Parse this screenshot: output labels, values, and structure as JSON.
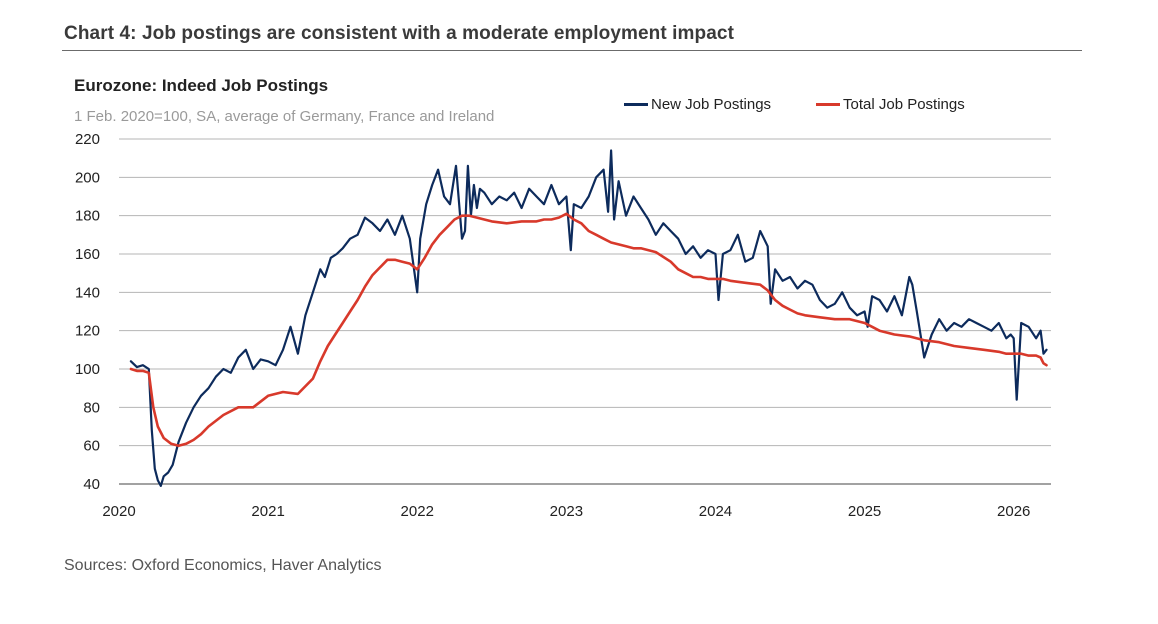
{
  "page": {
    "title": "Chart 4: Job postings are consistent with a moderate employment impact",
    "source": "Sources: Oxford Economics, Haver Analytics"
  },
  "chart_data": {
    "type": "line",
    "title": "Eurozone: Indeed Job Postings",
    "subtitle": "1 Feb. 2020=100, SA, average of Germany, France and Ireland",
    "xlabel": "",
    "ylabel": "",
    "xlim": [
      2020,
      2026.25
    ],
    "ylim": [
      40,
      220
    ],
    "yticks": [
      40,
      60,
      80,
      100,
      120,
      140,
      160,
      180,
      200,
      220
    ],
    "xticks": [
      "2020",
      "2021",
      "2022",
      "2023",
      "2024",
      "2025",
      "2026"
    ],
    "xtick_values": [
      2020,
      2021,
      2022,
      2023,
      2024,
      2025,
      2026
    ],
    "grid": true,
    "legend_position": "top-right",
    "series": [
      {
        "name": "New Job Postings",
        "color": "#0d2b5c",
        "x": [
          2020.08,
          2020.12,
          2020.16,
          2020.2,
          2020.22,
          2020.24,
          2020.26,
          2020.28,
          2020.3,
          2020.33,
          2020.36,
          2020.4,
          2020.45,
          2020.5,
          2020.55,
          2020.6,
          2020.65,
          2020.7,
          2020.75,
          2020.8,
          2020.85,
          2020.9,
          2020.95,
          2021.0,
          2021.05,
          2021.1,
          2021.15,
          2021.2,
          2021.25,
          2021.3,
          2021.35,
          2021.38,
          2021.42,
          2021.46,
          2021.5,
          2021.55,
          2021.6,
          2021.65,
          2021.7,
          2021.75,
          2021.8,
          2021.85,
          2021.9,
          2021.95,
          2022.0,
          2022.02,
          2022.06,
          2022.1,
          2022.14,
          2022.18,
          2022.22,
          2022.26,
          2022.3,
          2022.32,
          2022.34,
          2022.36,
          2022.38,
          2022.4,
          2022.42,
          2022.45,
          2022.5,
          2022.55,
          2022.6,
          2022.65,
          2022.7,
          2022.75,
          2022.8,
          2022.85,
          2022.9,
          2022.95,
          2023.0,
          2023.03,
          2023.05,
          2023.1,
          2023.15,
          2023.2,
          2023.25,
          2023.28,
          2023.3,
          2023.32,
          2023.35,
          2023.4,
          2023.45,
          2023.5,
          2023.55,
          2023.6,
          2023.65,
          2023.7,
          2023.75,
          2023.8,
          2023.85,
          2023.9,
          2023.95,
          2024.0,
          2024.02,
          2024.05,
          2024.1,
          2024.15,
          2024.2,
          2024.25,
          2024.3,
          2024.35,
          2024.37,
          2024.4,
          2024.45,
          2024.5,
          2024.55,
          2024.6,
          2024.65,
          2024.7,
          2024.75,
          2024.8,
          2024.85,
          2024.9,
          2024.95,
          2025.0,
          2025.02,
          2025.05,
          2025.1,
          2025.15,
          2025.2,
          2025.25,
          2025.3,
          2025.32,
          2025.35,
          2025.4,
          2025.45,
          2025.5,
          2025.55,
          2025.6,
          2025.65,
          2025.7,
          2025.75,
          2025.8,
          2025.85,
          2025.9,
          2025.95,
          2025.98,
          2026.0,
          2026.02,
          2026.05,
          2026.1,
          2026.15,
          2026.18,
          2026.2,
          2026.22
        ],
        "values": [
          104,
          101,
          102,
          100,
          68,
          48,
          42,
          39,
          44,
          46,
          50,
          62,
          72,
          80,
          86,
          90,
          96,
          100,
          98,
          106,
          110,
          100,
          105,
          104,
          102,
          110,
          122,
          108,
          128,
          140,
          152,
          148,
          158,
          160,
          163,
          168,
          170,
          179,
          176,
          172,
          178,
          170,
          180,
          168,
          140,
          168,
          186,
          196,
          204,
          190,
          186,
          206,
          168,
          172,
          206,
          180,
          196,
          184,
          194,
          192,
          186,
          190,
          188,
          192,
          184,
          194,
          190,
          186,
          196,
          186,
          190,
          162,
          186,
          184,
          190,
          200,
          204,
          182,
          214,
          178,
          198,
          180,
          190,
          184,
          178,
          170,
          176,
          172,
          168,
          160,
          164,
          158,
          162,
          160,
          136,
          160,
          162,
          170,
          156,
          158,
          172,
          164,
          134,
          152,
          146,
          148,
          142,
          146,
          144,
          136,
          132,
          134,
          140,
          132,
          128,
          130,
          122,
          138,
          136,
          130,
          138,
          128,
          148,
          144,
          130,
          106,
          118,
          126,
          120,
          124,
          122,
          126,
          124,
          122,
          120,
          124,
          116,
          118,
          116,
          84,
          124,
          122,
          116,
          120,
          108,
          110
        ]
      },
      {
        "name": "Total Job Postings",
        "color": "#d8392b",
        "x": [
          2020.08,
          2020.12,
          2020.16,
          2020.2,
          2020.23,
          2020.26,
          2020.3,
          2020.35,
          2020.4,
          2020.45,
          2020.5,
          2020.55,
          2020.6,
          2020.7,
          2020.8,
          2020.9,
          2021.0,
          2021.1,
          2021.2,
          2021.3,
          2021.35,
          2021.4,
          2021.45,
          2021.5,
          2021.55,
          2021.6,
          2021.65,
          2021.7,
          2021.75,
          2021.8,
          2021.85,
          2021.9,
          2021.95,
          2022.0,
          2022.05,
          2022.1,
          2022.15,
          2022.2,
          2022.25,
          2022.3,
          2022.35,
          2022.4,
          2022.45,
          2022.5,
          2022.6,
          2022.7,
          2022.8,
          2022.85,
          2022.9,
          2022.95,
          2023.0,
          2023.05,
          2023.1,
          2023.15,
          2023.2,
          2023.25,
          2023.3,
          2023.35,
          2023.4,
          2023.45,
          2023.5,
          2023.6,
          2023.7,
          2023.75,
          2023.8,
          2023.85,
          2023.9,
          2023.95,
          2024.0,
          2024.05,
          2024.1,
          2024.2,
          2024.3,
          2024.35,
          2024.4,
          2024.45,
          2024.5,
          2024.55,
          2024.6,
          2024.7,
          2024.8,
          2024.9,
          2025.0,
          2025.05,
          2025.1,
          2025.15,
          2025.2,
          2025.3,
          2025.4,
          2025.5,
          2025.6,
          2025.7,
          2025.8,
          2025.9,
          2025.95,
          2026.0,
          2026.05,
          2026.1,
          2026.15,
          2026.18,
          2026.2,
          2026.22
        ],
        "values": [
          100,
          99,
          99,
          98,
          80,
          70,
          64,
          61,
          60,
          61,
          63,
          66,
          70,
          76,
          80,
          80,
          86,
          88,
          87,
          95,
          104,
          112,
          118,
          124,
          130,
          136,
          143,
          149,
          153,
          157,
          157,
          156,
          155,
          152,
          158,
          165,
          170,
          174,
          178,
          180,
          180,
          179,
          178,
          177,
          176,
          177,
          177,
          178,
          178,
          179,
          181,
          178,
          176,
          172,
          170,
          168,
          166,
          165,
          164,
          163,
          163,
          161,
          156,
          152,
          150,
          148,
          148,
          147,
          147,
          147,
          146,
          145,
          144,
          141,
          136,
          133,
          131,
          129,
          128,
          127,
          126,
          126,
          124,
          122,
          120,
          119,
          118,
          117,
          115,
          114,
          112,
          111,
          110,
          109,
          108,
          108,
          108,
          107,
          107,
          106,
          103,
          102
        ]
      }
    ]
  }
}
